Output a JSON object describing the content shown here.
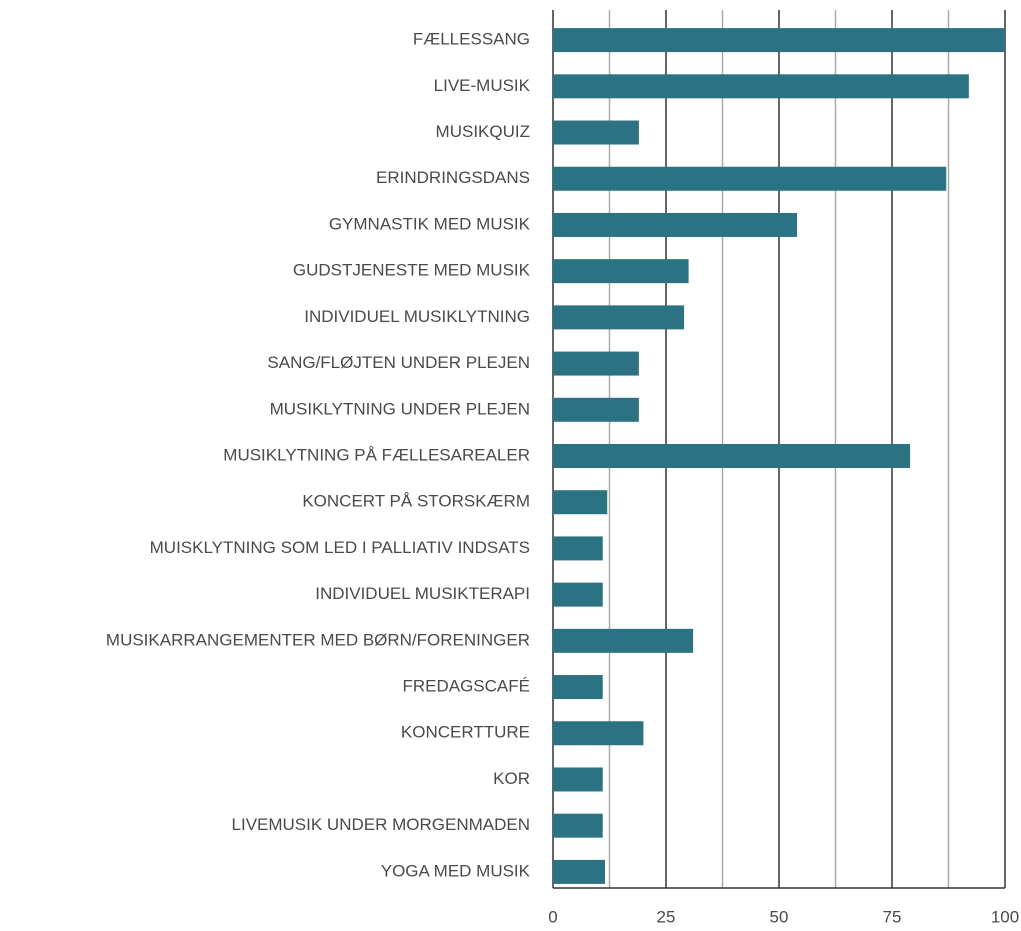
{
  "chart_data": {
    "type": "barh",
    "categories": [
      "FÆLLESSANG",
      "LIVE-MUSIK",
      "MUSIKQUIZ",
      "ERINDRINGSDANS",
      "GYMNASTIK MED MUSIK",
      "GUDSTJENESTE MED MUSIK",
      "INDIVIDUEL MUSIKLYTNING",
      "SANG/FLØJTEN UNDER PLEJEN",
      "MUSIKLYTNING UNDER PLEJEN",
      "MUSIKLYTNING PÅ FÆLLESAREALER",
      "KONCERT PÅ STORSKÆRM",
      "MUISKLYTNING SOM LED I PALLIATIV INDSATS",
      "INDIVIDUEL MUSIKTERAPI",
      "MUSIKARRANGEMENTER MED BØRN/FORENINGER",
      "FREDAGSCAFÉ",
      "KONCERTTURE",
      "KOR",
      "LIVEMUSIK UNDER MORGENMADEN",
      "YOGA MED MUSIK"
    ],
    "values": [
      100,
      92,
      19,
      87,
      54,
      30,
      29,
      19,
      19,
      79,
      12,
      11,
      11,
      31,
      11,
      20,
      11,
      11,
      11.5
    ],
    "color": "#2b7282",
    "xlim": [
      0,
      100
    ],
    "xticks": [
      0,
      25,
      50,
      75,
      100
    ],
    "minor_xticks": [
      12.5,
      37.5,
      62.5,
      87.5
    ],
    "grid": true
  }
}
